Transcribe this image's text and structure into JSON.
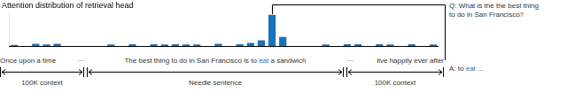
{
  "chart_data": {
    "type": "bar",
    "title": "Attention distribution of retrieval head",
    "categories": [
      null,
      null,
      null,
      null,
      null,
      null,
      null,
      null,
      null,
      null,
      null,
      null,
      null,
      null,
      null,
      null,
      null,
      null,
      null,
      null,
      null,
      null,
      null,
      null,
      null,
      null,
      null,
      null,
      null,
      null,
      null,
      null,
      null,
      null,
      null,
      null,
      null,
      null,
      null,
      null
    ],
    "values": [
      0.04,
      0.0,
      0.07,
      0.05,
      0.07,
      0.0,
      0.0,
      0.0,
      0.0,
      0.05,
      0.0,
      0.06,
      0.0,
      0.06,
      0.05,
      0.06,
      0.05,
      0.05,
      0.0,
      0.07,
      0.0,
      0.06,
      0.1,
      0.18,
      0.95,
      0.28,
      0.0,
      0.0,
      0.0,
      0.05,
      0.0,
      0.06,
      0.06,
      0.0,
      0.06,
      0.05,
      0.0,
      0.06,
      0.0,
      0.05
    ],
    "color": "#1a72b8",
    "ylim": [
      -0.05,
      1.0
    ],
    "grid": false,
    "tick_labels": false,
    "annotations": [
      {
        "text": "Once upon a time"
      },
      {
        "text": "···"
      },
      {
        "parts": [
          {
            "text": "The best thing to do in San Francisco is to "
          },
          {
            "text": "eat",
            "color": "#1a72b8"
          },
          {
            "text": " a sandwich"
          }
        ]
      },
      {
        "text": "···"
      },
      {
        "text": "live happily ever after"
      },
      {
        "text": "100K context"
      },
      {
        "text": "Needle sentence"
      },
      {
        "text": "100K context"
      },
      {
        "text": "Q: What is the the best thing\nto do in San Francisco?"
      },
      {
        "parts": [
          {
            "text": "A: to "
          },
          {
            "text": "eat",
            "color": "#1a72b8"
          },
          {
            "text": " ..."
          }
        ]
      }
    ]
  }
}
